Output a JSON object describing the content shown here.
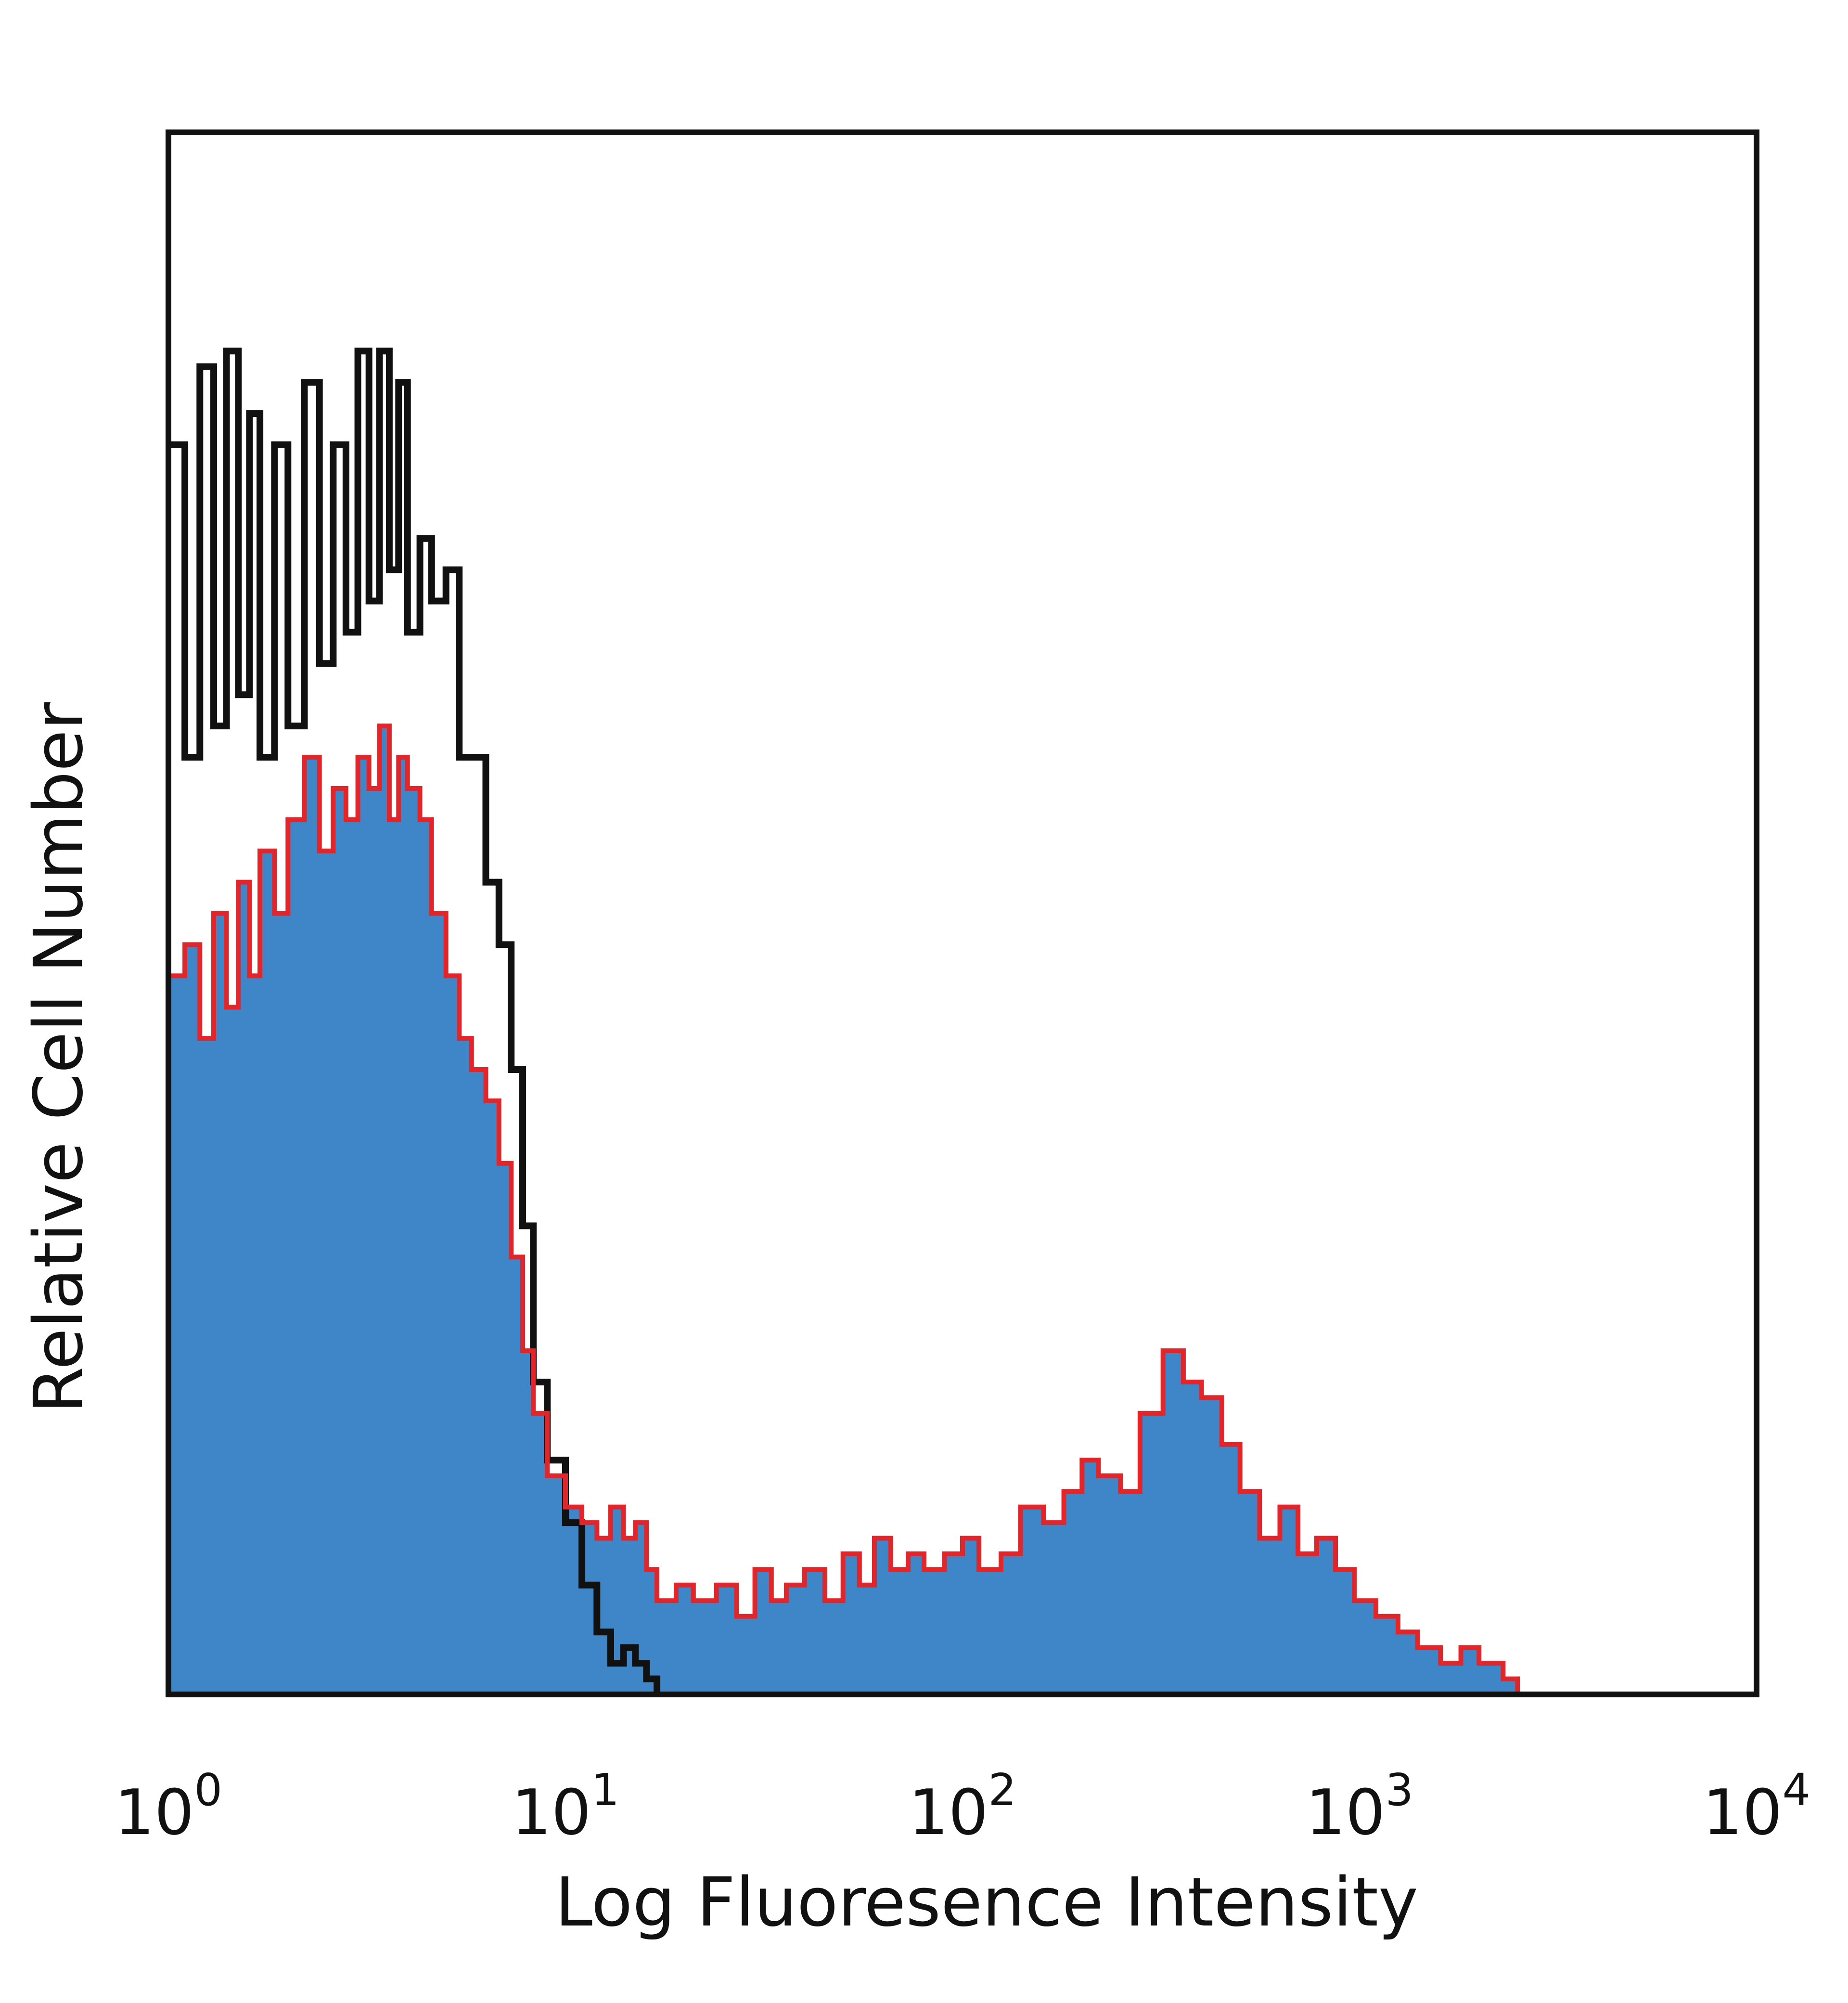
{
  "chart_data": {
    "type": "area",
    "title": "",
    "xlabel": "Log Fluoresence Intensity",
    "ylabel": "Relative Cell Number",
    "x_scale": "log",
    "xlim": [
      1,
      10000
    ],
    "ylim": [
      0,
      100
    ],
    "grid": false,
    "legend": "none",
    "x_ticks": [
      {
        "value": 1,
        "base": "10",
        "exp": "0"
      },
      {
        "value": 10,
        "base": "10",
        "exp": "1"
      },
      {
        "value": 100,
        "base": "10",
        "exp": "2"
      },
      {
        "value": 1000,
        "base": "10",
        "exp": "3"
      },
      {
        "value": 10000,
        "base": "10",
        "exp": "4"
      }
    ],
    "colors": {
      "fill": "#3f86c8",
      "red": "#e0262b",
      "black": "#111111",
      "frame": "#111111"
    },
    "series": [
      {
        "style": "black-outline",
        "x": [
          1.0,
          1.1,
          1.2,
          1.3,
          1.4,
          1.5,
          1.6,
          1.7,
          1.85,
          2.0,
          2.2,
          2.4,
          2.6,
          2.8,
          3.0,
          3.2,
          3.4,
          3.6,
          3.8,
          4.0,
          4.3,
          4.6,
          5.0,
          5.4,
          5.8,
          6.3,
          6.8,
          7.3,
          7.8,
          8.3,
          9.0,
          10.0,
          11.0,
          12.0,
          13.0,
          14.0,
          15.0,
          16.0,
          17.0
        ],
        "y": [
          80,
          60,
          85,
          62,
          86,
          64,
          82,
          60,
          80,
          62,
          84,
          66,
          80,
          68,
          86,
          70,
          86,
          72,
          84,
          68,
          74,
          70,
          72,
          60,
          60,
          52,
          48,
          40,
          30,
          20,
          15,
          11,
          7,
          4,
          2,
          3,
          2,
          1,
          0
        ]
      },
      {
        "style": "blue-fill-red-outline",
        "x": [
          1.0,
          1.1,
          1.2,
          1.3,
          1.4,
          1.5,
          1.6,
          1.7,
          1.85,
          2.0,
          2.2,
          2.4,
          2.6,
          2.8,
          3.0,
          3.2,
          3.4,
          3.6,
          3.8,
          4.0,
          4.3,
          4.6,
          5.0,
          5.4,
          5.8,
          6.3,
          6.8,
          7.3,
          7.8,
          8.3,
          9.0,
          10.0,
          11.0,
          12.0,
          13.0,
          14.0,
          15.0,
          16.0,
          17.0,
          19.0,
          21.0,
          24.0,
          27.0,
          30.0,
          33.0,
          36.0,
          40.0,
          45.0,
          50.0,
          55.0,
          60.0,
          66.0,
          73.0,
          80.0,
          90.0,
          100.0,
          110.0,
          125.0,
          140.0,
          160.0,
          180.0,
          200.0,
          220.0,
          250.0,
          280.0,
          320.0,
          360.0,
          400.0,
          450.0,
          500.0,
          560.0,
          630.0,
          700.0,
          780.0,
          870.0,
          970.0,
          1100.0,
          1250.0,
          1400.0,
          1600.0,
          1800.0,
          2000.0,
          2300.0,
          2500.0
        ],
        "y": [
          46,
          48,
          42,
          50,
          44,
          52,
          46,
          54,
          50,
          56,
          60,
          54,
          58,
          56,
          60,
          58,
          62,
          56,
          60,
          58,
          56,
          50,
          46,
          42,
          40,
          38,
          34,
          28,
          22,
          18,
          14,
          12,
          11,
          10,
          12,
          10,
          11,
          8,
          6,
          7,
          6,
          7,
          5,
          8,
          6,
          7,
          8,
          6,
          9,
          7,
          10,
          8,
          9,
          8,
          9,
          10,
          8,
          9,
          12,
          11,
          13,
          15,
          14,
          13,
          18,
          22,
          20,
          19,
          16,
          13,
          10,
          12,
          9,
          10,
          8,
          6,
          5,
          4,
          3,
          2,
          3,
          2,
          1,
          0
        ]
      }
    ]
  }
}
